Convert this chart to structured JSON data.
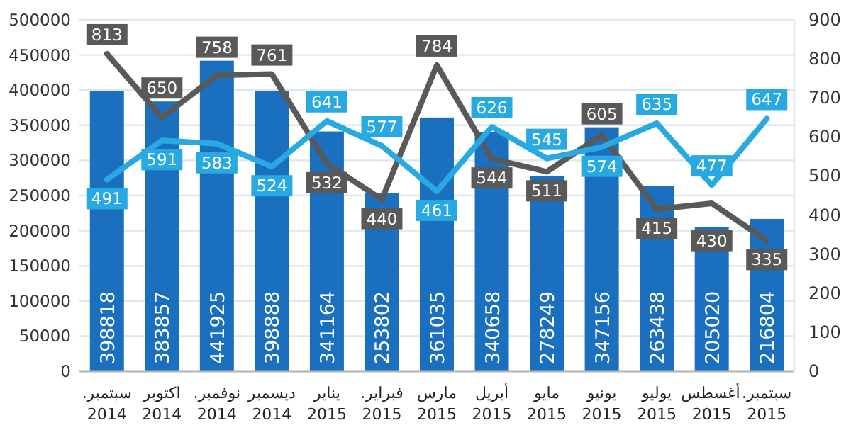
{
  "chart_data": {
    "type": "bar",
    "categories": [
      "سبتمبر. 2014",
      "اكتوبر 2014",
      "نوفمبر. 2014",
      "ديسمبر 2014",
      "يناير 2015",
      "فبراير. 2015",
      "مارس 2015",
      "أبريل 2015",
      "مايو 2015",
      "يونيو 2015",
      "يوليو 2015",
      "أغسطس 2015",
      "سبتمبر. 2015"
    ],
    "series": [
      {
        "color": "#1b6fbf",
        "values": [
          398818,
          383857,
          441925,
          398888,
          341164,
          253802,
          361035,
          340658,
          278249,
          347156,
          263438,
          205020,
          216804
        ]
      },
      {
        "type": "line",
        "axis": "y2",
        "color": "#595959",
        "values": [
          813,
          650,
          758,
          761,
          532,
          440,
          784,
          544,
          511,
          605,
          415,
          430,
          335
        ]
      },
      {
        "type": "line",
        "axis": "y2",
        "color": "#29a9e1",
        "values": [
          491,
          591,
          583,
          524,
          641,
          577,
          461,
          626,
          545,
          574,
          635,
          477,
          647
        ]
      }
    ],
    "ylim": [
      0,
      500000
    ],
    "yticks": [
      0,
      50000,
      100000,
      150000,
      200000,
      250000,
      300000,
      350000,
      400000,
      450000,
      500000
    ],
    "y2lim": [
      0,
      900
    ],
    "y2ticks": [
      0,
      100,
      200,
      300,
      400,
      500,
      600,
      700,
      800,
      900
    ],
    "grid": "y",
    "data_labels": true,
    "line_style": "solid"
  }
}
